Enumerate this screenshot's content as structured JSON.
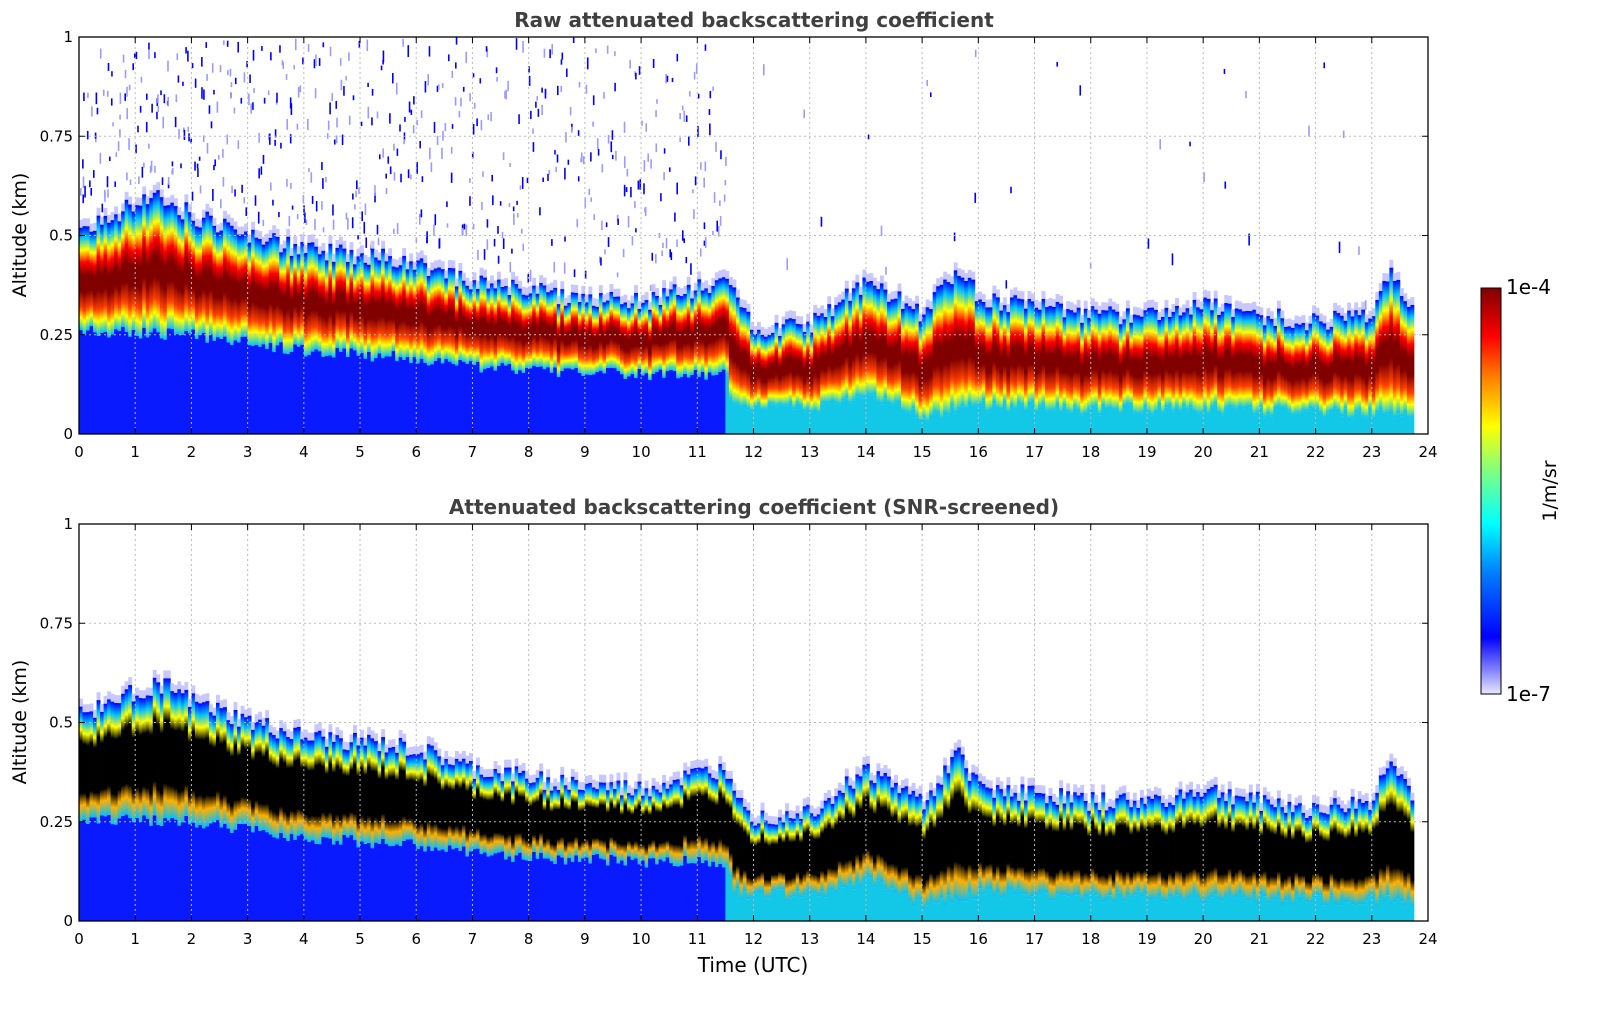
{
  "colors": {
    "jet": [
      "#00008f",
      "#0000ff",
      "#0080ff",
      "#00ffff",
      "#80ff80",
      "#ffff00",
      "#ff8000",
      "#ff0000",
      "#800000"
    ],
    "screened_core": "#000000",
    "grid": "#bbbbbb",
    "axis": "#000000",
    "title_text": "#404040"
  },
  "colorbar": {
    "label": "1/m/sr",
    "top_label": "1e-4",
    "bottom_label": "1e-7",
    "scale": "log",
    "range": [
      1e-07,
      0.0001
    ]
  },
  "chart_data": [
    {
      "type": "heatmap",
      "title": "Raw attenuated backscattering coefficient",
      "xlabel": "",
      "ylabel": "Altitude (km)",
      "xlim": [
        0,
        24
      ],
      "ylim": [
        0,
        1
      ],
      "xticks": [
        "0",
        "1",
        "2",
        "3",
        "4",
        "5",
        "6",
        "7",
        "8",
        "9",
        "10",
        "11",
        "12",
        "13",
        "14",
        "15",
        "16",
        "17",
        "18",
        "19",
        "20",
        "21",
        "22",
        "23",
        "24"
      ],
      "yticks": [
        "0",
        "0.25",
        "0.5",
        "0.75",
        "1"
      ],
      "grid": true,
      "data_extent_hours": 23.75,
      "layer_top_km": {
        "x": [
          0,
          1.4,
          2,
          3,
          4,
          5,
          6,
          7,
          8,
          9,
          10,
          11,
          11.5,
          12,
          13,
          14,
          15,
          15.6,
          16,
          17,
          18,
          19,
          20,
          21,
          22,
          23,
          23.3,
          23.75
        ],
        "y": [
          0.52,
          0.6,
          0.55,
          0.5,
          0.46,
          0.45,
          0.43,
          0.38,
          0.36,
          0.34,
          0.33,
          0.37,
          0.38,
          0.26,
          0.28,
          0.38,
          0.3,
          0.42,
          0.34,
          0.32,
          0.3,
          0.3,
          0.33,
          0.3,
          0.28,
          0.3,
          0.42,
          0.3
        ]
      },
      "core_km": {
        "x": [
          0,
          2,
          4,
          6,
          8,
          10,
          11.5,
          12,
          14,
          15,
          16,
          18,
          20,
          22,
          23.75
        ],
        "y": [
          0.37,
          0.4,
          0.33,
          0.3,
          0.24,
          0.22,
          0.21,
          0.14,
          0.18,
          0.12,
          0.18,
          0.15,
          0.16,
          0.13,
          0.14
        ]
      },
      "layer_bottom_km": {
        "x": [
          0,
          2,
          4,
          6,
          7,
          8,
          10,
          11.5,
          11.6,
          13,
          14,
          15,
          16,
          18,
          20,
          22,
          23.75
        ],
        "y": [
          0.26,
          0.25,
          0.21,
          0.19,
          0.17,
          0.16,
          0.15,
          0.15,
          0.07,
          0.06,
          0.1,
          0.04,
          0.07,
          0.06,
          0.06,
          0.05,
          0.05
        ]
      }
    },
    {
      "type": "heatmap",
      "title": "Attenuated backscattering coefficient (SNR-screened)",
      "xlabel": "Time (UTC)",
      "ylabel": "Altitude (km)",
      "xlim": [
        0,
        24
      ],
      "ylim": [
        0,
        1
      ],
      "xticks": [
        "0",
        "1",
        "2",
        "3",
        "4",
        "5",
        "6",
        "7",
        "8",
        "9",
        "10",
        "11",
        "12",
        "13",
        "14",
        "15",
        "16",
        "17",
        "18",
        "19",
        "20",
        "21",
        "22",
        "23",
        "24"
      ],
      "yticks": [
        "0",
        "0.25",
        "0.5",
        "0.75",
        "1"
      ],
      "grid": true,
      "data_extent_hours": 23.75,
      "note_values": "black core marks saturated/screened region"
    }
  ]
}
